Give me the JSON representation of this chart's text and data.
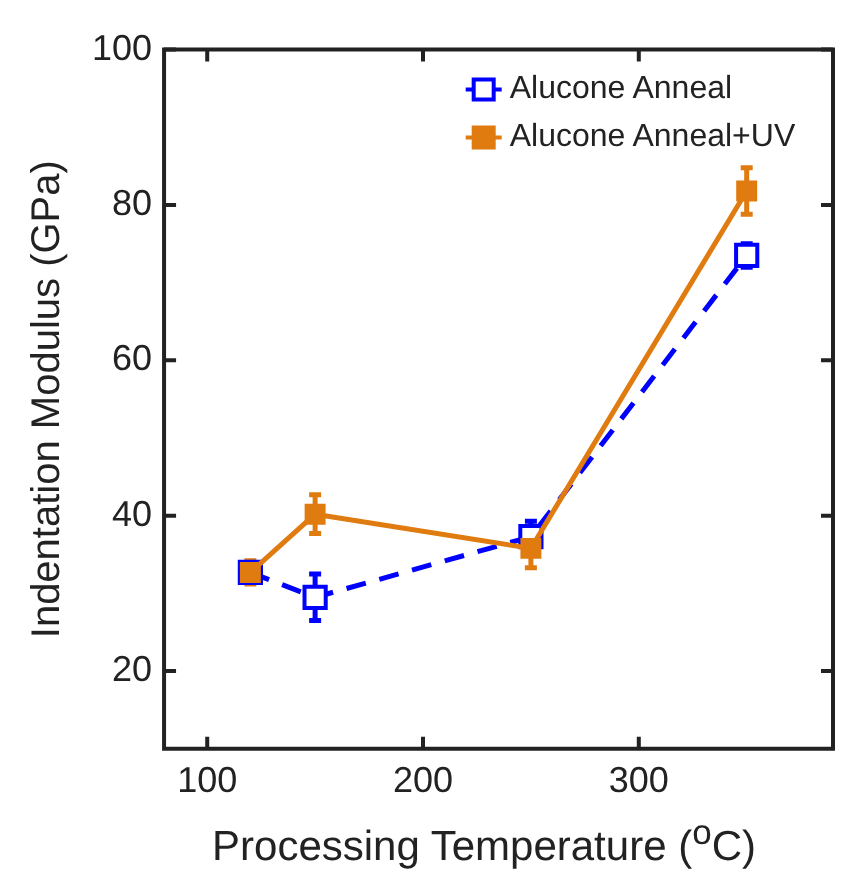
{
  "chart_data": {
    "type": "line",
    "xlabel": "Processing Temperature ($^{o}$C)",
    "ylabel": "Indentation Modulus (GPa)",
    "x": [
      120,
      150,
      250,
      350
    ],
    "series": [
      {
        "name": "Alucone Anneal",
        "color": "#0000ff",
        "values": [
          32.7,
          29.5,
          37.3,
          73.5
        ],
        "errors": [
          null,
          3,
          2,
          1.5
        ],
        "line_style": "dashed"
      },
      {
        "name": "Alucone Anneal+UV",
        "color": "#e07b10",
        "values": [
          32.7,
          40.2,
          35.8,
          81.8
        ],
        "errors": [
          1.5,
          2.5,
          2.5,
          3
        ],
        "line_style": "solid"
      }
    ],
    "xlim": [
      80,
      390
    ],
    "xticks": [
      100,
      200,
      300
    ],
    "ylim": [
      10,
      100
    ],
    "yticks": [
      20,
      40,
      60,
      80,
      100
    ],
    "marker": "square",
    "legend": "top right",
    "grid": false
  }
}
